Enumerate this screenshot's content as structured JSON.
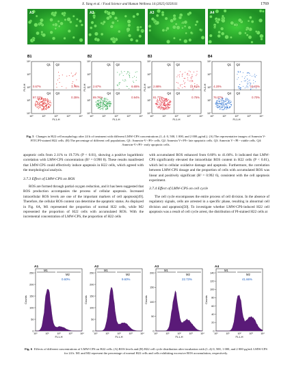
{
  "header": {
    "running_title": "X. Yang et al. / Food Science and Human Wellness 14 (2025) 9250111",
    "page_number": "1769"
  },
  "figure5": {
    "panel_a": {
      "labels": [
        "A1",
        "A2",
        "A3",
        "A4"
      ]
    },
    "panel_b": {
      "y_axis_label": "FL3-H",
      "x_axis_label": "FL1-H",
      "ticks": [
        "10⁰",
        "10¹",
        "10²",
        "10³",
        "10⁴"
      ],
      "plots": [
        {
          "label": "B1",
          "quadrants": [
            "Q1",
            "Q2",
            "Q4",
            "Q3"
          ],
          "percentages": [
            "0.67%",
            "1.76%",
            "97.22%",
            "0.35%"
          ]
        },
        {
          "label": "B2",
          "quadrants": [
            "Q1",
            "Q2",
            "Q4",
            "Q3"
          ],
          "percentages": [
            "2.67%",
            "6.65%",
            "89.76%",
            "0.94%"
          ]
        },
        {
          "label": "B3",
          "quadrants": [
            "Q1",
            "Q2",
            "Q4",
            "Q3"
          ],
          "percentages": [
            "2.88%",
            "14.61%",
            "81.77%",
            "0.75%"
          ]
        },
        {
          "label": "B4",
          "quadrants": [
            "Q1",
            "Q2",
            "Q4",
            "Q3"
          ],
          "percentages": [
            "4.20%",
            "19.03%",
            "76.07%",
            "0.70%"
          ]
        }
      ]
    },
    "caption_label": "Fig. 5",
    "caption": "Changes in H22 cell morphology after 24 h of treatment with different LMW-CPS concentrations (1–4: 0, 500, 1 000, and 2 000 μg/mL). (A) The representative images of Annexin V-FITC/PI-stained H22 cells. (B) The percentage of different cell populations. Q1: Annexin-V−/PI+ cells. Q2: Annexin V+/PI+ late apoptotic cells. Q3: Annexin V−/PI− viable cells. Q4: Annexin-V+/PI− early apoptotic cells."
  },
  "body": {
    "left": [
      {
        "kind": "p",
        "text": "apoptotic cells from 2.11% to 19.73% (P < 0.01), showing a positive logarithmic correlation with LMW-CPS concentration (R² = 0.990 8). These results manifested that LMW-CPS could effectively induce apoptosis in H22 cells, which agreed with the morphological analysis."
      },
      {
        "kind": "h",
        "text": "3.7.3  Effect of LMW-CPS on ROS"
      },
      {
        "kind": "p",
        "text": "ROS are formed through partial oxygen reduction, and it has been suggested that ROS production accompanies the process of cellular apoptosis. Increased intracellular ROS levels are one of the important markers of cell apoptosis[49]. Therefore, the cellular ROS content can determine the apoptotic status. As displayed in Fig. 6A, M1 represented the proportion of normal H22 cells, while M2 represented the proportion of H22 cells with accumulated ROS. With the incremental concentration of LMW-CPS, the proportion of H22 cells"
      }
    ],
    "right": [
      {
        "kind": "p",
        "text": "with accumulated ROS enhanced from 0.60% to 41.66%. It indicated that LMW-CPS significantly elevated the intracellular ROS content in H22 cells (P < 0.01), which led to cellular oxidative damage and apoptosis. Furthermore, the correlation between LMW-CPS dosage and the proportion of cells with accumulated ROS was linear and positively significant (R² = 0.992 6), consistent with the cell apoptosis experiment."
      },
      {
        "kind": "h",
        "text": "3.7.4  Effect of LMW-CPS on cell cycle"
      },
      {
        "kind": "p",
        "text": "The cell cycle encompasses the entire process of cell division. In the absence of regulatory signals, cells are arrested in a specific phase, resulting in abnormal cell division and apoptosis[50]. To investigate whether LMW-CPS-induced H22 cell apoptosis was a result of cell cycle arrest, the distribution of PI-stained H22 cells at"
      }
    ]
  },
  "figure6": {
    "y_axis_label": "Counts",
    "x_axis_label": "FL1-H",
    "ticks": [
      "10⁰",
      "10¹",
      "10²",
      "10³",
      "10⁴"
    ],
    "markers": [
      "M1",
      "M2"
    ],
    "plots": [
      {
        "label": "A1",
        "percentage": "0.60%",
        "yticks": [
          0,
          50,
          100,
          150,
          200,
          250
        ]
      },
      {
        "label": "A2",
        "percentage": "9.60%",
        "yticks": [
          0,
          50,
          100,
          150,
          200,
          250
        ]
      },
      {
        "label": "A3",
        "percentage": "22.73%",
        "yticks": [
          0,
          50,
          100,
          150,
          200
        ]
      },
      {
        "label": "A4",
        "percentage": "41.66%",
        "yticks": [
          0,
          20,
          40,
          60,
          80,
          100,
          120,
          140
        ]
      }
    ],
    "caption_label": "Fig. 6",
    "caption": "Effects of different concentrations of LMW-CPS on H22 cells. (A) ROS levels and (B) H22 cell cycle distribution after incubation with (1–4) 0, 500, 1 000, and 2 000 μg/mL LMW-CPS for 24 h. M1 and M2 represent the percentage of normal H22 cells and cells exhibiting excessive ROS accumulation, respectively."
  }
}
